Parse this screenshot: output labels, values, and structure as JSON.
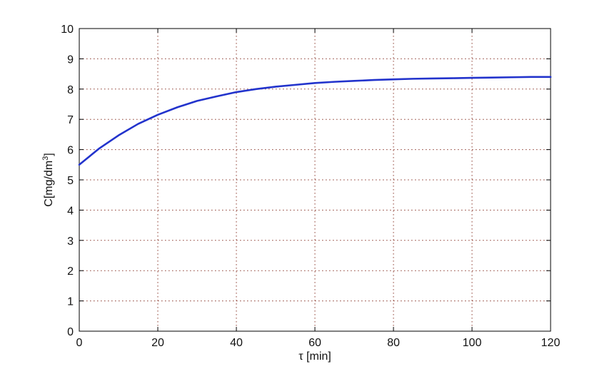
{
  "chart_data": {
    "type": "line",
    "xlabel": "τ [min]",
    "ylabel_main": "C[mg/dm",
    "ylabel_sup": "3",
    "ylabel_close": "]",
    "xlim": [
      0,
      120
    ],
    "ylim": [
      0,
      10
    ],
    "xticks": [
      0,
      20,
      40,
      60,
      80,
      100,
      120
    ],
    "yticks": [
      0,
      1,
      2,
      3,
      4,
      5,
      6,
      7,
      8,
      9,
      10
    ],
    "grid": true,
    "grid_color": "#8b3a2e",
    "line_color": "#2233cc",
    "series": [
      {
        "x": [
          0,
          5,
          10,
          15,
          20,
          25,
          30,
          35,
          40,
          45,
          50,
          55,
          60,
          65,
          70,
          75,
          80,
          85,
          90,
          95,
          100,
          105,
          110,
          115,
          120
        ],
        "values": [
          5.5,
          6.03,
          6.47,
          6.85,
          7.15,
          7.4,
          7.61,
          7.76,
          7.9,
          8.0,
          8.08,
          8.14,
          8.2,
          8.24,
          8.27,
          8.3,
          8.32,
          8.34,
          8.35,
          8.36,
          8.37,
          8.38,
          8.39,
          8.4,
          8.4
        ]
      }
    ]
  }
}
